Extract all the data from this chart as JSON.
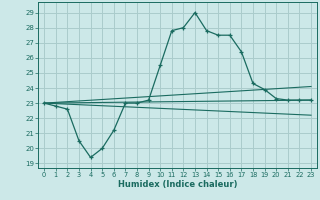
{
  "title": "",
  "xlabel": "Humidex (Indice chaleur)",
  "ylabel": "",
  "bg_color": "#cce8e8",
  "grid_color": "#aacccc",
  "line_color": "#1a6b60",
  "x_ticks": [
    0,
    1,
    2,
    3,
    4,
    5,
    6,
    7,
    8,
    9,
    10,
    11,
    12,
    13,
    14,
    15,
    16,
    17,
    18,
    19,
    20,
    21,
    22,
    23
  ],
  "y_ticks": [
    19,
    20,
    21,
    22,
    23,
    24,
    25,
    26,
    27,
    28,
    29
  ],
  "xlim": [
    -0.5,
    23.5
  ],
  "ylim": [
    18.7,
    29.7
  ],
  "series_main": {
    "x": [
      0,
      1,
      2,
      3,
      4,
      5,
      6,
      7,
      8,
      9,
      10,
      11,
      12,
      13,
      14,
      15,
      16,
      17,
      18,
      19,
      20,
      21,
      22,
      23
    ],
    "y": [
      23.0,
      22.8,
      22.6,
      20.5,
      19.4,
      20.0,
      21.2,
      23.0,
      23.0,
      23.2,
      25.5,
      27.8,
      28.0,
      29.0,
      27.8,
      27.5,
      27.5,
      26.4,
      24.3,
      23.9,
      23.3,
      23.2,
      23.2,
      23.2
    ]
  },
  "series_lines": [
    {
      "x": [
        0,
        23
      ],
      "y": [
        23.0,
        23.2
      ]
    },
    {
      "x": [
        0,
        23
      ],
      "y": [
        23.0,
        24.1
      ]
    },
    {
      "x": [
        0,
        23
      ],
      "y": [
        23.0,
        22.2
      ]
    }
  ]
}
